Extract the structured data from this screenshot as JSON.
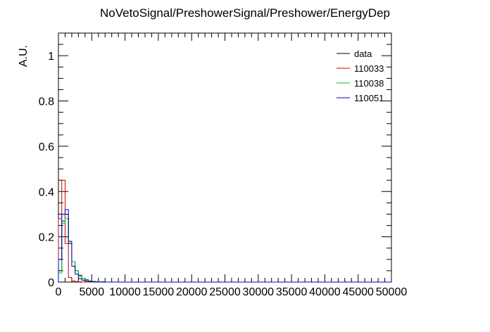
{
  "chart_data": {
    "type": "step-histogram",
    "title": "NoVetoSignal/PreshowerSignal/Preshower/EnergyDep",
    "xlabel": "",
    "ylabel": "A.U.",
    "xlim": [
      0,
      50000
    ],
    "ylim": [
      0,
      1.1
    ],
    "bin_width": 500,
    "xticks": [
      0,
      5000,
      10000,
      15000,
      20000,
      25000,
      30000,
      35000,
      40000,
      45000,
      50000
    ],
    "xtick_labels": [
      "0",
      "5000",
      "10000",
      "15000",
      "20000",
      "25000",
      "30000",
      "35000",
      "40000",
      "45000",
      "50000"
    ],
    "yticks": [
      0,
      0.2,
      0.4,
      0.6,
      0.8,
      1
    ],
    "ytick_labels": [
      "0",
      "0.2",
      "0.4",
      "0.6",
      "0.8",
      "1"
    ],
    "legend": "top-right",
    "series": [
      {
        "name": "data",
        "color": "#000000",
        "values": [
          0.05,
          0.27,
          0.3,
          0.17,
          0.09,
          0.05,
          0.03,
          0.015,
          0.01,
          0.005,
          0.003,
          0.002,
          0.001,
          0.001
        ]
      },
      {
        "name": "110033",
        "color": "#cc0000",
        "values": [
          0.28,
          0.45,
          0.17,
          0.02,
          0.005,
          0.002,
          0.001,
          0.0,
          0.0,
          0.0,
          0.0,
          0.0,
          0.0,
          0.0
        ]
      },
      {
        "name": "110038",
        "color": "#00cc00",
        "values": [
          0.04,
          0.26,
          0.28,
          0.18,
          0.09,
          0.05,
          0.025,
          0.015,
          0.008,
          0.004,
          0.002,
          0.001,
          0.001,
          0.0
        ]
      },
      {
        "name": "110051",
        "color": "#0000cc",
        "values": [
          0.1,
          0.3,
          0.32,
          0.18,
          0.07,
          0.035,
          0.015,
          0.008,
          0.004,
          0.002,
          0.001,
          0.0,
          0.0,
          0.0
        ]
      }
    ]
  }
}
